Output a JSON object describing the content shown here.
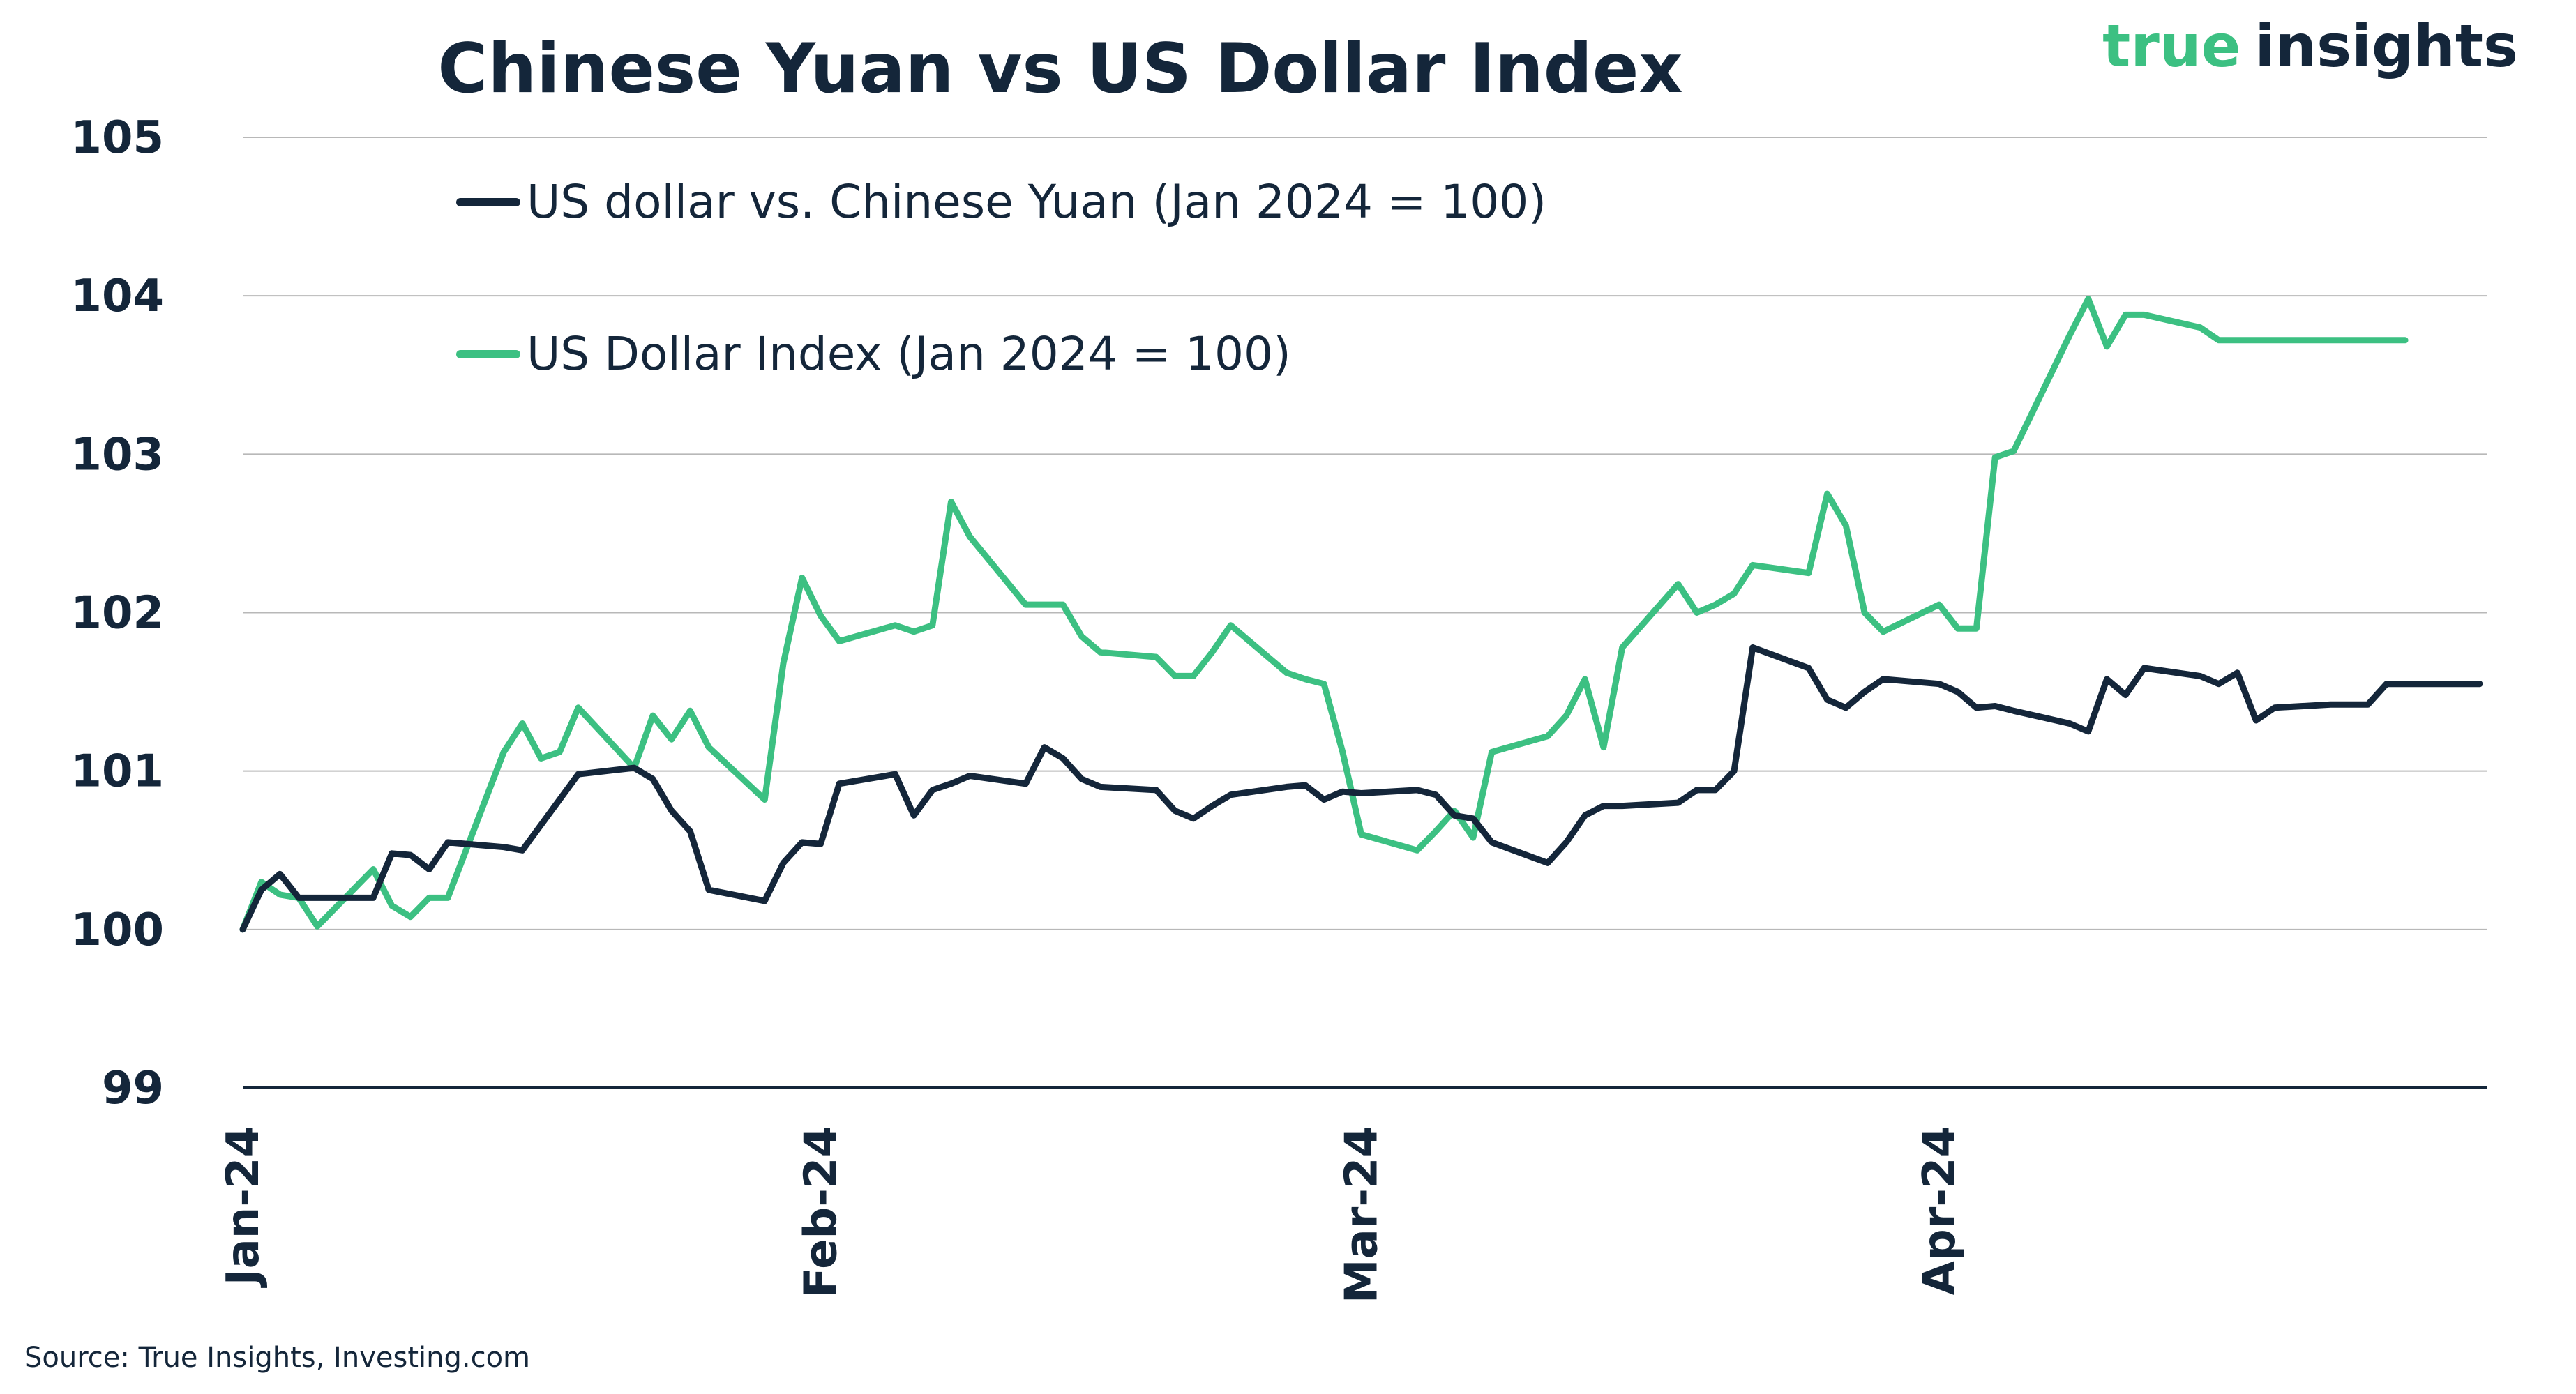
{
  "brand": {
    "part1": "true",
    "part2": "insights",
    "color_primary": "#3cc082",
    "color_secondary": "#14263a"
  },
  "source": "Source: True Insights, Investing.com",
  "chart_data": {
    "type": "line",
    "title": "Chinese Yuan vs US Dollar Index",
    "xlabel": "",
    "ylabel": "",
    "ylim": [
      99,
      105
    ],
    "yticks": [
      99,
      100,
      101,
      102,
      103,
      104,
      105
    ],
    "xlim": [
      "2024-01-01",
      "2024-04-30"
    ],
    "xticks": [
      {
        "date": "2024-01-01",
        "label": "Jan-24"
      },
      {
        "date": "2024-02-01",
        "label": "Feb-24"
      },
      {
        "date": "2024-03-01",
        "label": "Mar-24"
      },
      {
        "date": "2024-04-01",
        "label": "Apr-24"
      }
    ],
    "grid": true,
    "legend_position": "top-left",
    "series": [
      {
        "name": "US dollar vs. Chinese Yuan (Jan 2024 = 100)",
        "color": "#14263a",
        "x": [
          "2024-01-01",
          "2024-01-02",
          "2024-01-03",
          "2024-01-04",
          "2024-01-05",
          "2024-01-08",
          "2024-01-09",
          "2024-01-10",
          "2024-01-11",
          "2024-01-12",
          "2024-01-15",
          "2024-01-16",
          "2024-01-19",
          "2024-01-22",
          "2024-01-23",
          "2024-01-24",
          "2024-01-25",
          "2024-01-26",
          "2024-01-29",
          "2024-01-30",
          "2024-01-31",
          "2024-02-01",
          "2024-02-02",
          "2024-02-05",
          "2024-02-06",
          "2024-02-07",
          "2024-02-08",
          "2024-02-09",
          "2024-02-12",
          "2024-02-13",
          "2024-02-14",
          "2024-02-15",
          "2024-02-16",
          "2024-02-19",
          "2024-02-20",
          "2024-02-21",
          "2024-02-22",
          "2024-02-23",
          "2024-02-26",
          "2024-02-27",
          "2024-02-28",
          "2024-02-29",
          "2024-03-01",
          "2024-03-04",
          "2024-03-05",
          "2024-03-06",
          "2024-03-07",
          "2024-03-08",
          "2024-03-11",
          "2024-03-12",
          "2024-03-13",
          "2024-03-14",
          "2024-03-15",
          "2024-03-18",
          "2024-03-19",
          "2024-03-20",
          "2024-03-21",
          "2024-03-22",
          "2024-03-25",
          "2024-03-26",
          "2024-03-27",
          "2024-03-28",
          "2024-03-29",
          "2024-04-01",
          "2024-04-02",
          "2024-04-03",
          "2024-04-04",
          "2024-04-05",
          "2024-04-08",
          "2024-04-09",
          "2024-04-10",
          "2024-04-11",
          "2024-04-12",
          "2024-04-15",
          "2024-04-16",
          "2024-04-17",
          "2024-04-18",
          "2024-04-19",
          "2024-04-22",
          "2024-04-23",
          "2024-04-24",
          "2024-04-25",
          "2024-04-26",
          "2024-04-29",
          "2024-04-30"
        ],
        "y": [
          100.0,
          100.25,
          100.35,
          100.2,
          100.2,
          100.2,
          100.48,
          100.47,
          100.38,
          100.55,
          100.52,
          100.5,
          100.98,
          101.02,
          100.95,
          100.75,
          100.62,
          100.25,
          100.18,
          100.42,
          100.55,
          100.54,
          100.92,
          100.98,
          100.72,
          100.88,
          100.92,
          100.97,
          100.92,
          101.15,
          101.08,
          100.95,
          100.9,
          100.88,
          100.75,
          100.7,
          100.78,
          100.85,
          100.9,
          100.91,
          100.82,
          100.87,
          100.86,
          100.88,
          100.85,
          100.72,
          100.7,
          100.55,
          100.42,
          100.55,
          100.72,
          100.78,
          100.78,
          100.8,
          100.88,
          100.88,
          101.0,
          101.78,
          101.65,
          101.45,
          101.4,
          101.5,
          101.58,
          101.55,
          101.5,
          101.4,
          101.41,
          101.38,
          101.3,
          101.25,
          101.58,
          101.48,
          101.65,
          101.6,
          101.55,
          101.62,
          101.32,
          101.4,
          101.42,
          101.42,
          101.42,
          101.55,
          101.55,
          101.55,
          101.55
        ]
      },
      {
        "name": "US Dollar Index (Jan 2024 = 100)",
        "color": "#3cc082",
        "x": [
          "2024-01-01",
          "2024-01-02",
          "2024-01-03",
          "2024-01-04",
          "2024-01-05",
          "2024-01-08",
          "2024-01-09",
          "2024-01-10",
          "2024-01-11",
          "2024-01-12",
          "2024-01-15",
          "2024-01-16",
          "2024-01-17",
          "2024-01-18",
          "2024-01-19",
          "2024-01-22",
          "2024-01-23",
          "2024-01-24",
          "2024-01-25",
          "2024-01-26",
          "2024-01-29",
          "2024-01-30",
          "2024-01-31",
          "2024-02-01",
          "2024-02-02",
          "2024-02-05",
          "2024-02-06",
          "2024-02-07",
          "2024-02-08",
          "2024-02-09",
          "2024-02-12",
          "2024-02-13",
          "2024-02-14",
          "2024-02-15",
          "2024-02-16",
          "2024-02-19",
          "2024-02-20",
          "2024-02-21",
          "2024-02-22",
          "2024-02-23",
          "2024-02-26",
          "2024-02-27",
          "2024-02-28",
          "2024-02-29",
          "2024-03-01",
          "2024-03-04",
          "2024-03-05",
          "2024-03-06",
          "2024-03-07",
          "2024-03-08",
          "2024-03-11",
          "2024-03-12",
          "2024-03-13",
          "2024-03-14",
          "2024-03-15",
          "2024-03-18",
          "2024-03-19",
          "2024-03-20",
          "2024-03-21",
          "2024-03-22",
          "2024-03-25",
          "2024-03-26",
          "2024-03-27",
          "2024-03-28",
          "2024-03-29",
          "2024-04-01",
          "2024-04-02",
          "2024-04-03",
          "2024-04-04",
          "2024-04-05",
          "2024-04-08",
          "2024-04-09",
          "2024-04-10",
          "2024-04-11",
          "2024-04-12",
          "2024-04-15",
          "2024-04-16",
          "2024-04-17",
          "2024-04-18",
          "2024-04-19",
          "2024-04-22",
          "2024-04-23",
          "2024-04-24",
          "2024-04-25",
          "2024-04-26"
        ],
        "y": [
          100.0,
          100.3,
          100.22,
          100.2,
          100.02,
          100.38,
          100.15,
          100.08,
          100.2,
          100.2,
          101.12,
          101.3,
          101.08,
          101.12,
          101.4,
          101.02,
          101.35,
          101.2,
          101.38,
          101.15,
          100.82,
          101.68,
          102.22,
          101.98,
          101.82,
          101.92,
          101.88,
          101.92,
          102.7,
          102.48,
          102.05,
          102.05,
          102.05,
          101.85,
          101.75,
          101.72,
          101.6,
          101.6,
          101.75,
          101.92,
          101.62,
          101.58,
          101.55,
          101.12,
          100.6,
          100.5,
          100.62,
          100.75,
          100.58,
          101.12,
          101.22,
          101.35,
          101.58,
          101.15,
          101.78,
          102.18,
          102.0,
          102.05,
          102.12,
          102.3,
          102.25,
          102.75,
          102.55,
          102.0,
          101.88,
          102.05,
          101.9,
          101.9,
          102.98,
          103.02,
          103.75,
          103.98,
          103.68,
          103.88,
          103.88,
          103.8,
          103.72,
          103.72,
          103.72,
          103.72,
          103.72,
          103.72,
          103.72,
          103.72,
          103.72
        ]
      }
    ]
  }
}
